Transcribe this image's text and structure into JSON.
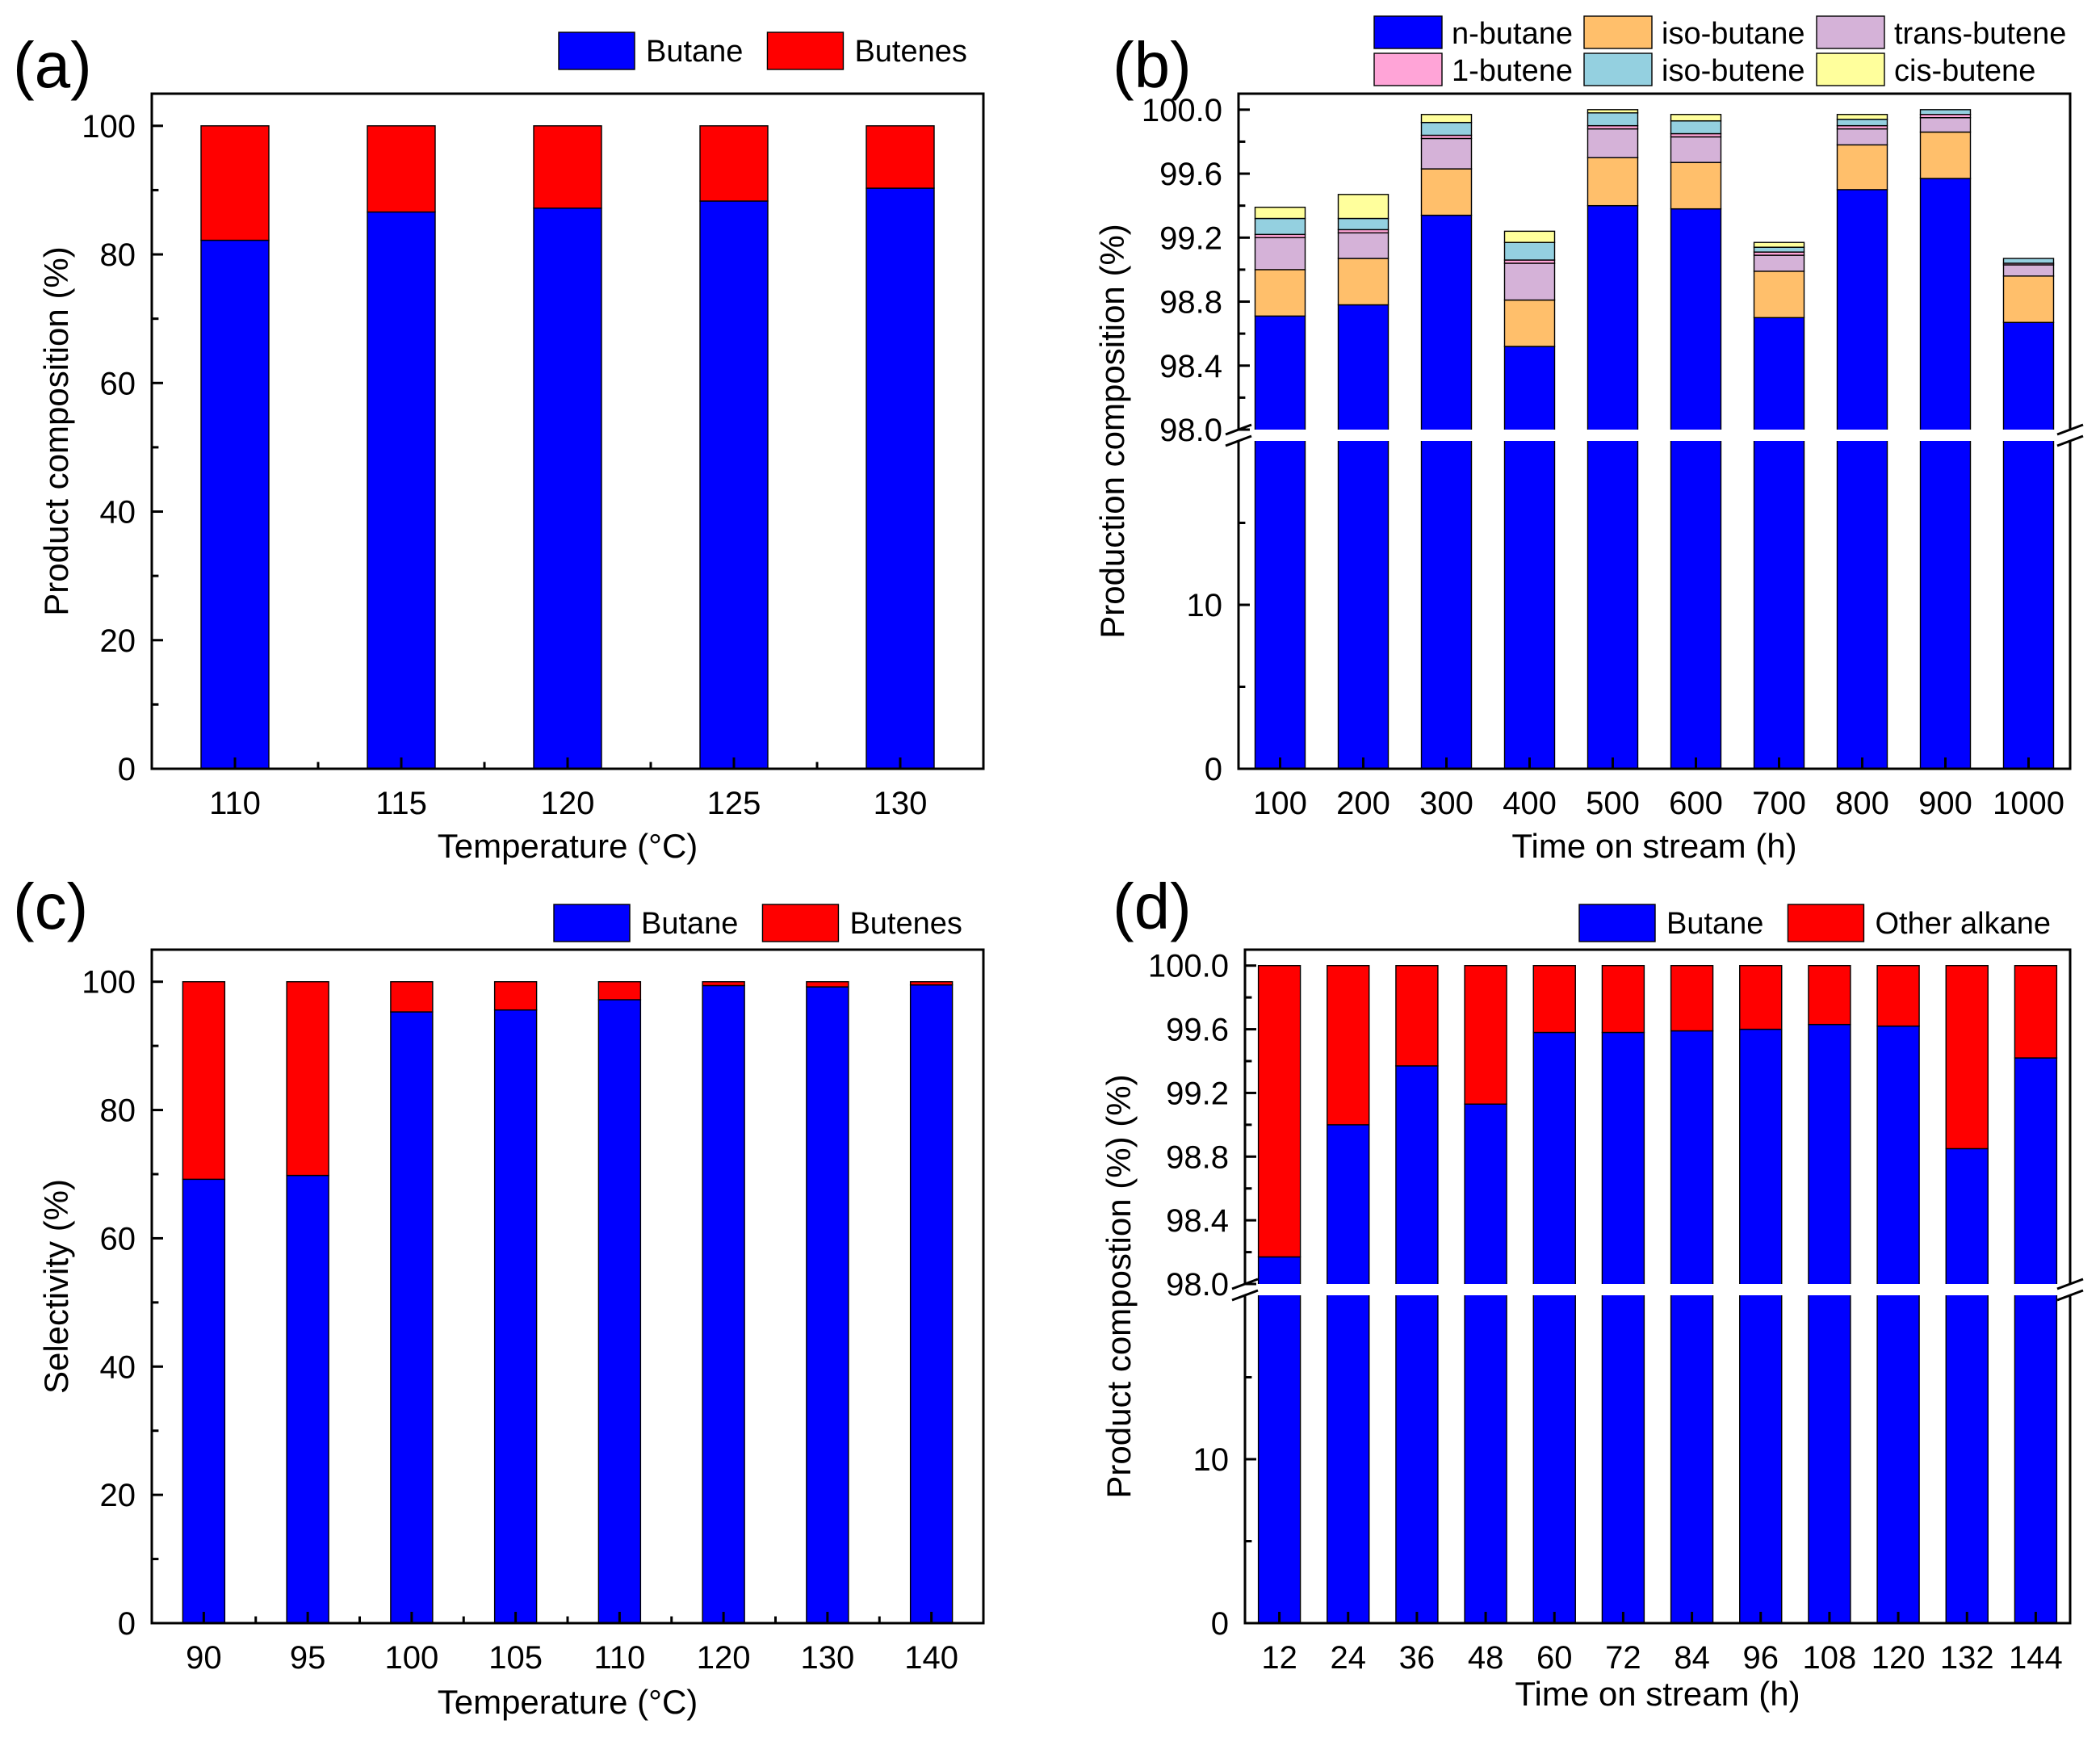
{
  "chart_data": [
    {
      "panel_label": "(a)",
      "type": "bar",
      "stacked": true,
      "xlabel": "Temperature (°C)",
      "ylabel": "Product composition (%)",
      "categories": [
        "110",
        "115",
        "120",
        "125",
        "130"
      ],
      "ylim": [
        0,
        105
      ],
      "yticks": [
        0,
        20,
        40,
        60,
        80,
        100
      ],
      "series": [
        {
          "name": "Butane",
          "color": "#0000ff",
          "values": [
            82.2,
            86.6,
            87.2,
            88.3,
            90.3
          ]
        },
        {
          "name": "Butenes",
          "color": "#ff0000",
          "values": [
            17.8,
            13.4,
            12.8,
            11.7,
            9.7
          ]
        }
      ],
      "legend_position": "top-right"
    },
    {
      "panel_label": "(b)",
      "type": "bar",
      "stacked": true,
      "broken_axis": true,
      "xlabel": "Time on stream (h)",
      "ylabel": "Production composition (%)",
      "categories": [
        "100",
        "200",
        "300",
        "400",
        "500",
        "600",
        "700",
        "800",
        "900",
        "1000"
      ],
      "ylim_lower": [
        0,
        20
      ],
      "yticks_lower": [
        0,
        10
      ],
      "ylim_upper": [
        98.0,
        100.1
      ],
      "yticks_upper": [
        "98.0",
        "98.4",
        "98.8",
        "99.2",
        "99.6",
        "100.0"
      ],
      "series": [
        {
          "name": "n-butane",
          "color": "#0000ff",
          "values": [
            98.71,
            98.78,
            99.34,
            98.52,
            99.4,
            99.38,
            98.7,
            99.5,
            99.57,
            98.67
          ]
        },
        {
          "name": "iso-butane",
          "color": "#ffbf6b",
          "values": [
            0.29,
            0.29,
            0.29,
            0.29,
            0.3,
            0.29,
            0.29,
            0.28,
            0.29,
            0.29
          ]
        },
        {
          "name": "trans-butene",
          "color": "#d5b2d8",
          "values": [
            0.2,
            0.16,
            0.19,
            0.23,
            0.18,
            0.16,
            0.1,
            0.1,
            0.09,
            0.07
          ]
        },
        {
          "name": "1-butene",
          "color": "#ffa4d7",
          "values": [
            0.02,
            0.02,
            0.02,
            0.02,
            0.02,
            0.02,
            0.02,
            0.02,
            0.02,
            0.01
          ]
        },
        {
          "name": "iso-butene",
          "color": "#94d0e0",
          "values": [
            0.1,
            0.07,
            0.08,
            0.11,
            0.08,
            0.08,
            0.03,
            0.04,
            0.03,
            0.03
          ]
        },
        {
          "name": "cis-butene",
          "color": "#ffff9c",
          "values": [
            0.07,
            0.15,
            0.05,
            0.07,
            0.02,
            0.04,
            0.03,
            0.03,
            0.0,
            0.0
          ]
        }
      ],
      "legend_position": "top-right"
    },
    {
      "panel_label": "(c)",
      "type": "bar",
      "stacked": true,
      "xlabel": "Temperature (°C)",
      "ylabel": "Selectivity (%)",
      "categories": [
        "90",
        "95",
        "100",
        "105",
        "110",
        "120",
        "130",
        "140"
      ],
      "ylim": [
        0,
        105
      ],
      "yticks": [
        0,
        20,
        40,
        60,
        80,
        100
      ],
      "series": [
        {
          "name": "Butane",
          "color": "#0000ff",
          "values": [
            69.2,
            69.8,
            95.3,
            95.6,
            97.2,
            99.4,
            99.2,
            99.5
          ]
        },
        {
          "name": "Butenes",
          "color": "#ff0000",
          "values": [
            30.8,
            30.2,
            4.7,
            4.4,
            2.8,
            0.6,
            0.8,
            0.5
          ]
        }
      ],
      "legend_position": "top-right"
    },
    {
      "panel_label": "(d)",
      "type": "bar",
      "stacked": true,
      "broken_axis": true,
      "xlabel": "Time on stream (h)",
      "ylabel": "Product compostion (%) (%)",
      "categories": [
        "12",
        "24",
        "36",
        "48",
        "60",
        "72",
        "84",
        "96",
        "108",
        "120",
        "132",
        "144"
      ],
      "ylim_lower": [
        0,
        20
      ],
      "yticks_lower": [
        0,
        10
      ],
      "ylim_upper": [
        98.0,
        100.1
      ],
      "yticks_upper": [
        "98.0",
        "98.4",
        "98.8",
        "99.2",
        "99.6",
        "100.0"
      ],
      "series": [
        {
          "name": "Butane",
          "color": "#0000ff",
          "values": [
            98.17,
            99.0,
            99.37,
            99.13,
            99.58,
            99.58,
            99.59,
            99.6,
            99.63,
            99.62,
            98.85,
            99.42
          ]
        },
        {
          "name": "Other alkane",
          "color": "#ff0000",
          "values": [
            1.83,
            1.0,
            0.63,
            0.87,
            0.42,
            0.42,
            0.41,
            0.4,
            0.37,
            0.38,
            1.15,
            0.58
          ]
        }
      ],
      "legend_position": "top-right"
    }
  ]
}
